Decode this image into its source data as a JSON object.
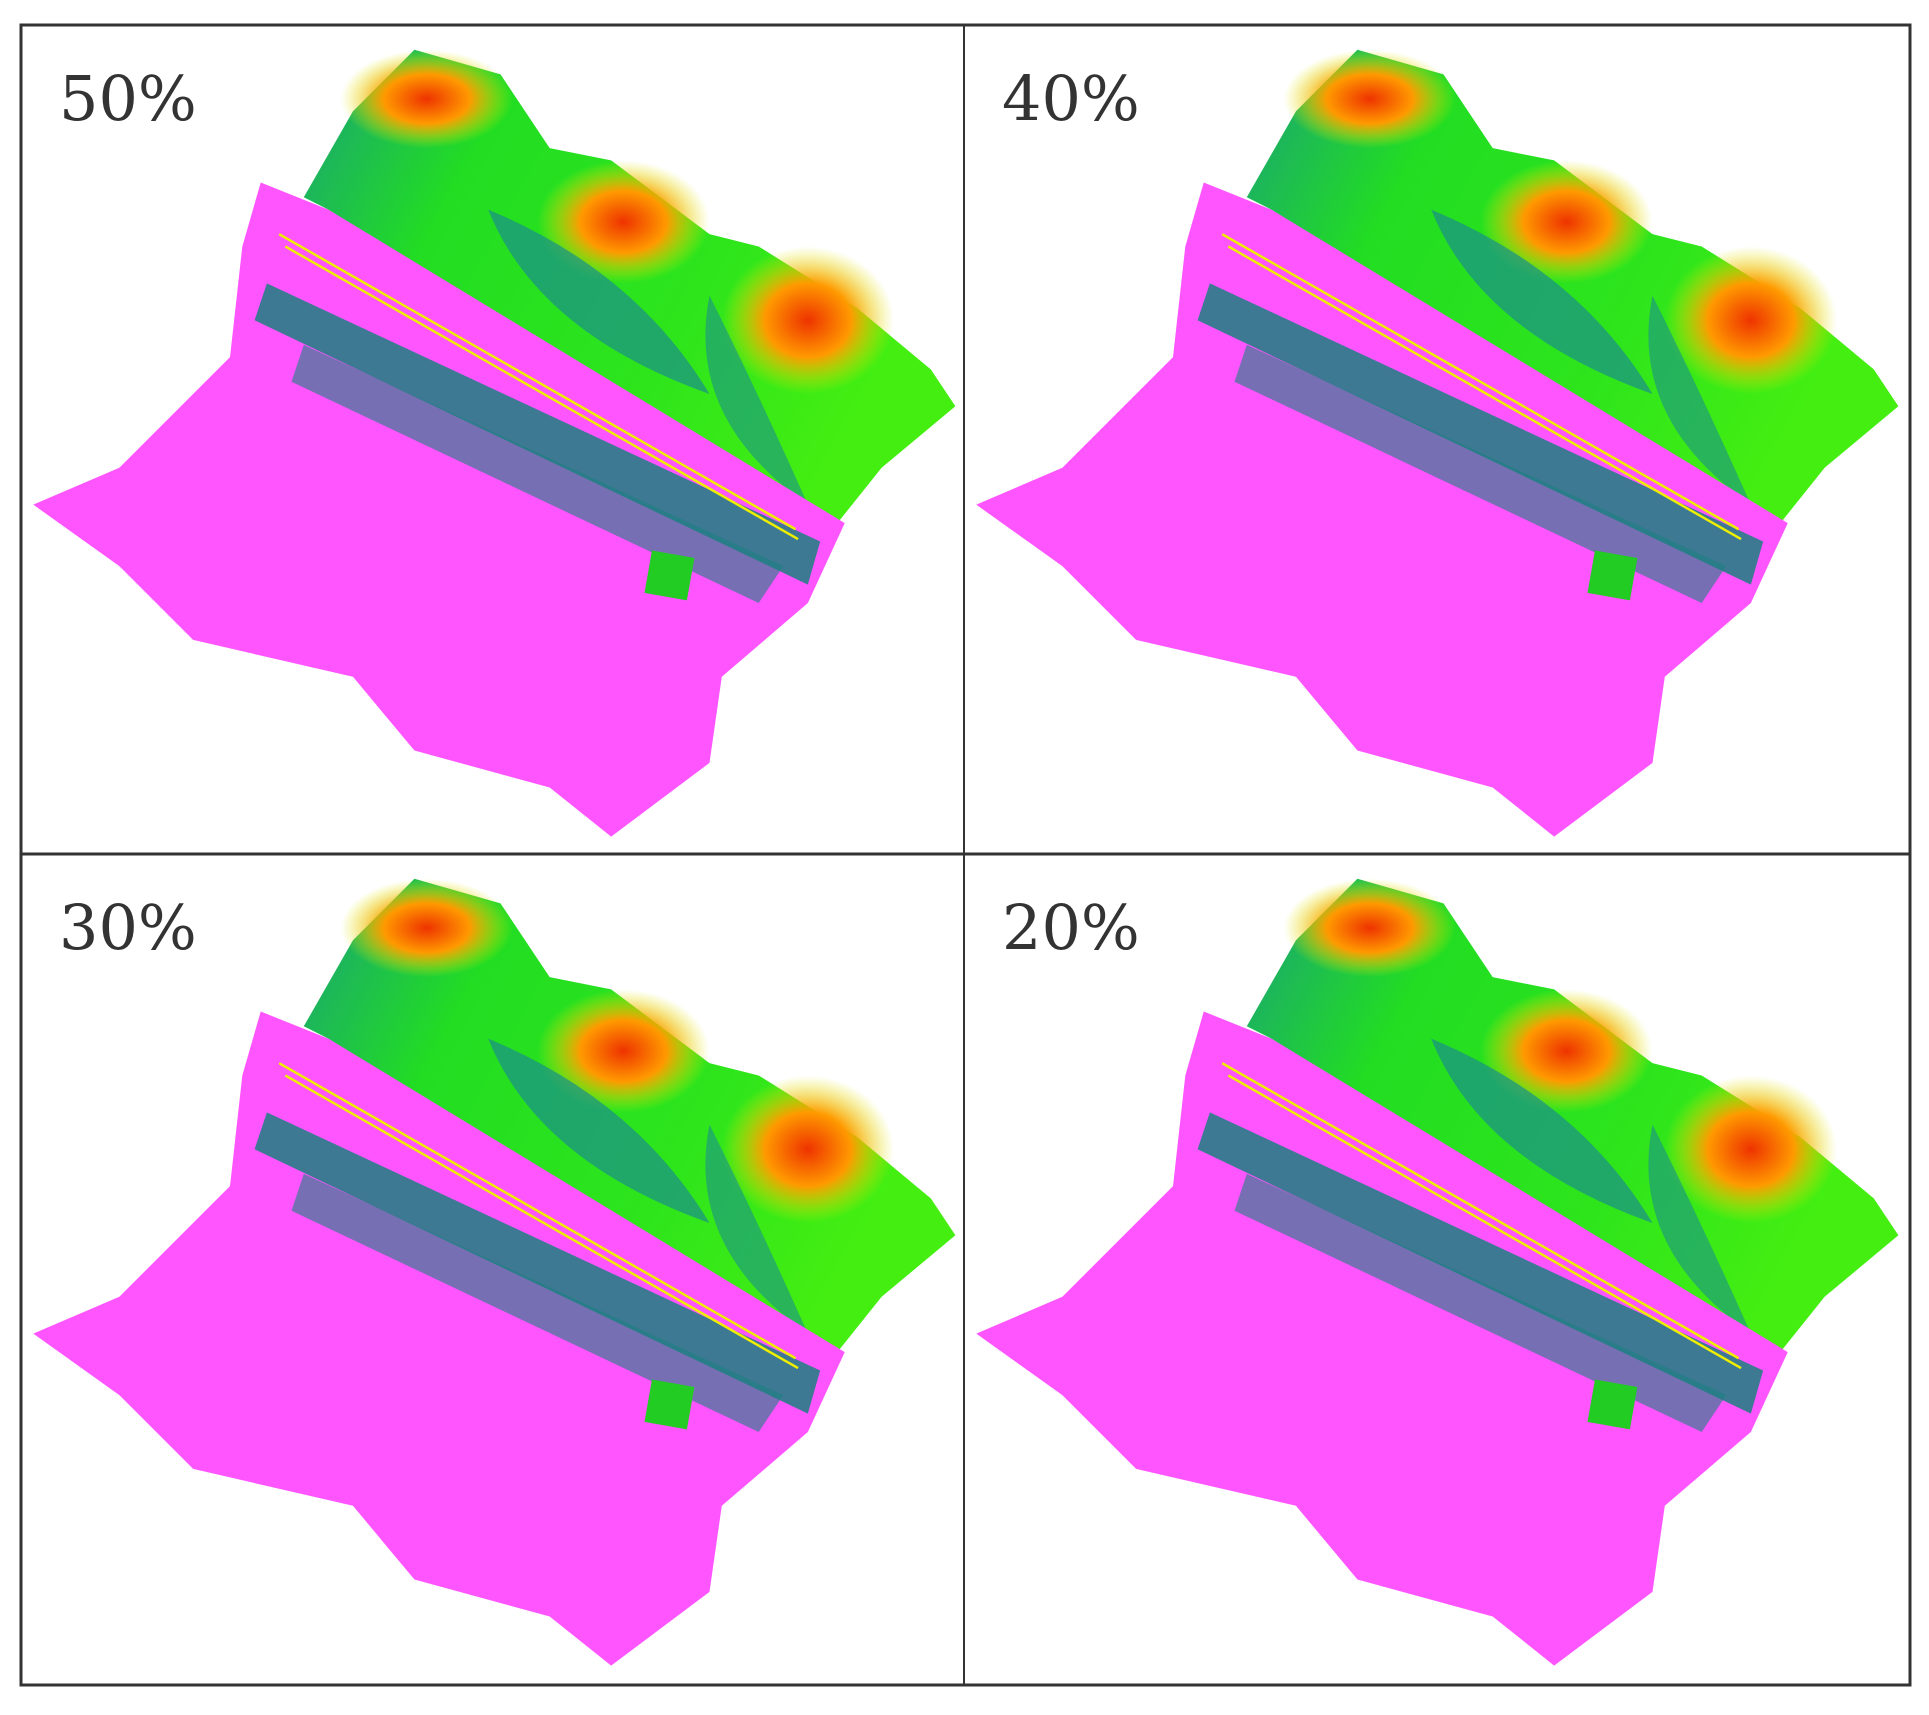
{
  "panels": [
    {
      "label": "50%"
    },
    {
      "label": "40%"
    },
    {
      "label": "30%"
    },
    {
      "label": "20%"
    }
  ]
}
